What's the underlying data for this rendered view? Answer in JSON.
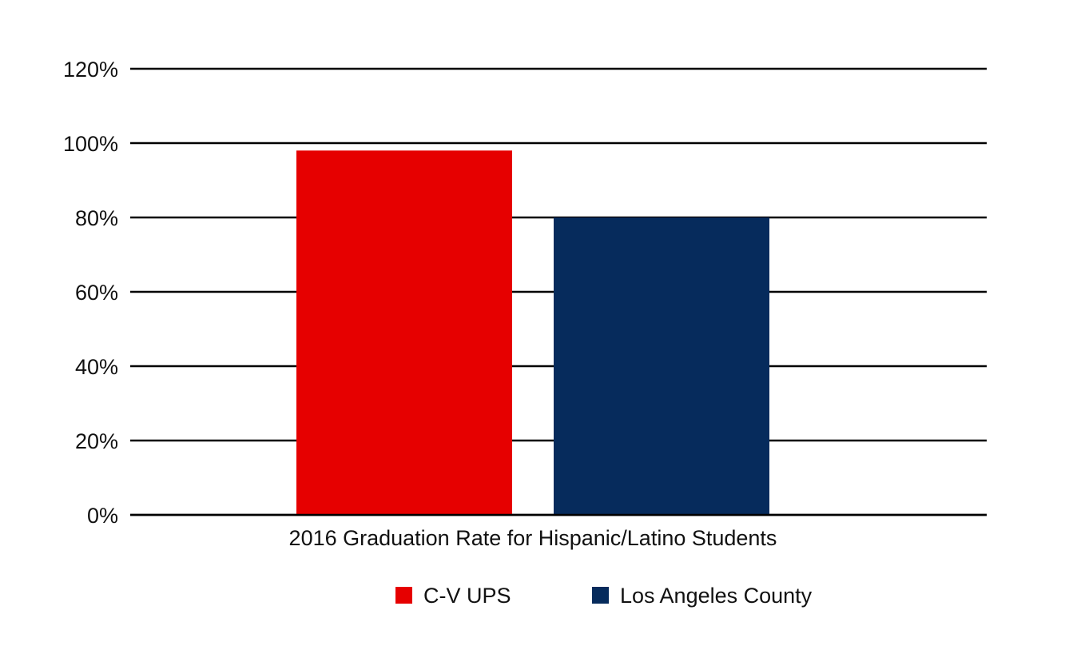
{
  "chart_data": {
    "type": "bar",
    "categories": [
      "2016 Graduation Rate for Hispanic/Latino Students"
    ],
    "series": [
      {
        "name": "C-V UPS",
        "values": [
          0.98
        ],
        "color": "#e60000"
      },
      {
        "name": "Los Angeles County",
        "values": [
          0.8
        ],
        "color": "#062b5c"
      }
    ],
    "ylim": [
      0,
      1.2
    ],
    "yticks": [
      0,
      0.2,
      0.4,
      0.6,
      0.8,
      1.0,
      1.2
    ],
    "ytick_labels": [
      "0%",
      "20%",
      "40%",
      "60%",
      "80%",
      "100%",
      "120%"
    ],
    "title": "",
    "xlabel": "",
    "ylabel": "",
    "grid": true,
    "legend_position": "bottom"
  }
}
